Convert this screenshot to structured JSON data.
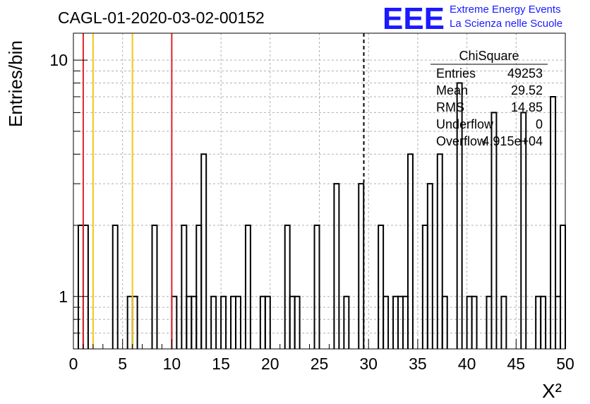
{
  "chart_data": {
    "type": "bar",
    "title": "CAGL-01-2020-03-02-00152",
    "xlabel": "X²",
    "ylabel": "Entries/bin",
    "xlim": [
      0,
      50
    ],
    "ylim": [
      0.6,
      13
    ],
    "y_scale": "log",
    "grid": true,
    "bin_width": 0.5,
    "x_ticks": [
      "0",
      "5",
      "10",
      "15",
      "20",
      "25",
      "30",
      "35",
      "40",
      "45",
      "50"
    ],
    "y_ticks": [
      "1",
      "10"
    ],
    "bins": [
      {
        "x0": 0.5,
        "value": 2
      },
      {
        "x0": 1.0,
        "value": 2
      },
      {
        "x0": 4.0,
        "value": 2
      },
      {
        "x0": 5.5,
        "value": 1
      },
      {
        "x0": 6.0,
        "value": 1
      },
      {
        "x0": 8.0,
        "value": 2
      },
      {
        "x0": 10.0,
        "value": 1
      },
      {
        "x0": 11.0,
        "value": 2
      },
      {
        "x0": 11.5,
        "value": 1
      },
      {
        "x0": 12.0,
        "value": 1
      },
      {
        "x0": 12.5,
        "value": 2
      },
      {
        "x0": 13.0,
        "value": 4
      },
      {
        "x0": 14.0,
        "value": 1
      },
      {
        "x0": 15.0,
        "value": 1
      },
      {
        "x0": 16.0,
        "value": 1
      },
      {
        "x0": 16.5,
        "value": 1
      },
      {
        "x0": 17.5,
        "value": 2
      },
      {
        "x0": 19.0,
        "value": 1
      },
      {
        "x0": 19.5,
        "value": 1
      },
      {
        "x0": 21.5,
        "value": 2
      },
      {
        "x0": 22.0,
        "value": 1
      },
      {
        "x0": 22.5,
        "value": 1
      },
      {
        "x0": 24.5,
        "value": 2
      },
      {
        "x0": 26.5,
        "value": 3
      },
      {
        "x0": 27.5,
        "value": 1
      },
      {
        "x0": 29.0,
        "value": 3
      },
      {
        "x0": 31.0,
        "value": 2
      },
      {
        "x0": 31.5,
        "value": 1
      },
      {
        "x0": 32.5,
        "value": 1
      },
      {
        "x0": 33.0,
        "value": 1
      },
      {
        "x0": 33.5,
        "value": 1
      },
      {
        "x0": 34.0,
        "value": 4
      },
      {
        "x0": 35.5,
        "value": 2
      },
      {
        "x0": 36.0,
        "value": 3
      },
      {
        "x0": 37.0,
        "value": 4
      },
      {
        "x0": 37.5,
        "value": 1
      },
      {
        "x0": 39.0,
        "value": 8
      },
      {
        "x0": 40.0,
        "value": 1
      },
      {
        "x0": 40.5,
        "value": 1
      },
      {
        "x0": 42.0,
        "value": 1
      },
      {
        "x0": 42.5,
        "value": 6
      },
      {
        "x0": 43.5,
        "value": 1
      },
      {
        "x0": 45.5,
        "value": 6
      },
      {
        "x0": 47.0,
        "value": 1
      },
      {
        "x0": 47.5,
        "value": 1
      },
      {
        "x0": 48.5,
        "value": 7
      },
      {
        "x0": 49.0,
        "value": 1
      },
      {
        "x0": 49.5,
        "value": 2
      }
    ],
    "vertical_lines": [
      {
        "x": 1,
        "color": "#e0242a",
        "style": "solid"
      },
      {
        "x": 2,
        "color": "#f5c518",
        "style": "solid"
      },
      {
        "x": 6,
        "color": "#f5c518",
        "style": "solid"
      },
      {
        "x": 10,
        "color": "#e0242a",
        "style": "solid"
      },
      {
        "x": 29.52,
        "color": "#000000",
        "style": "dashed"
      }
    ],
    "stats_box": {
      "title": "ChiSquare",
      "rows": [
        {
          "label": "Entries",
          "value": "49253"
        },
        {
          "label": "Mean",
          "value": "29.52"
        },
        {
          "label": "RMS",
          "value": "14.85"
        },
        {
          "label": "Underflow",
          "value": "0"
        },
        {
          "label": "Overflow",
          "value": "4.915e+04"
        }
      ]
    }
  },
  "logo": {
    "letters": "EEE",
    "line1": "Extreme Energy Events",
    "line2": "La Scienza nelle Scuole",
    "color": "#1a1aff"
  }
}
